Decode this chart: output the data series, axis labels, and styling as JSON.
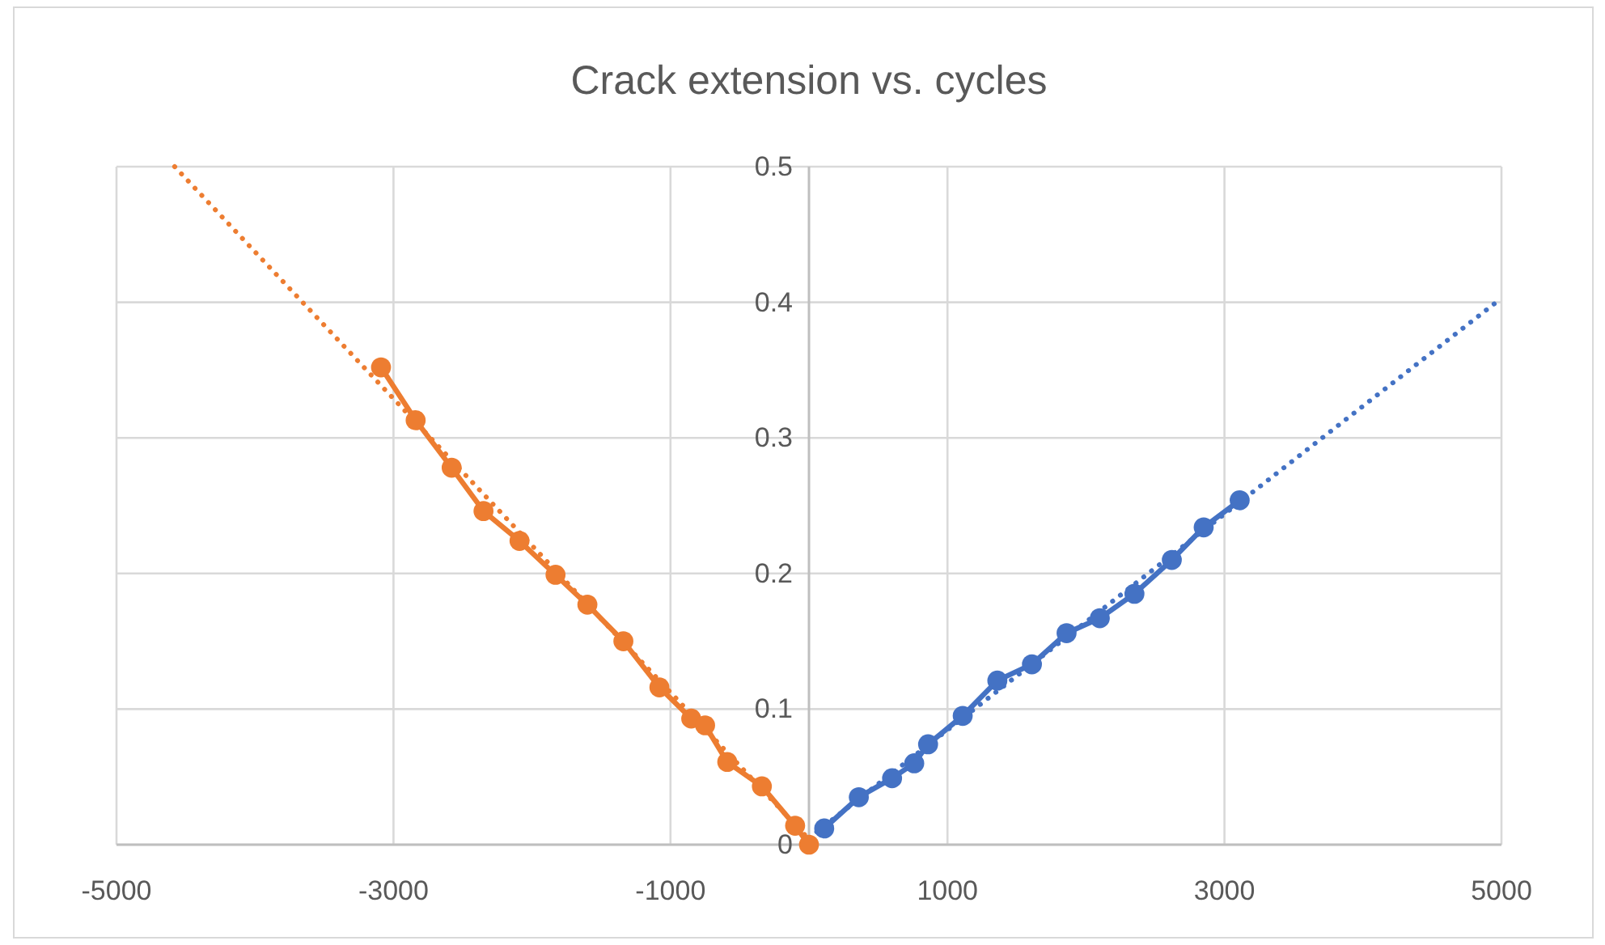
{
  "chart_data": {
    "type": "line",
    "title": "Crack extension vs. cycles",
    "xlim": [
      -5000,
      5000
    ],
    "xticks": [
      -5000,
      -3000,
      -1000,
      1000,
      3000,
      5000
    ],
    "ylim": [
      0,
      0.5
    ],
    "yticks": [
      0,
      0.1,
      0.2,
      0.3,
      0.4,
      0.5
    ],
    "grid": true,
    "marker": "circle",
    "line_style": "solid",
    "series": [
      {
        "color": "#4472c4",
        "x": [
          0,
          5000
        ],
        "values": [
          0.005,
          0.403
        ],
        "marker": "none",
        "line_style": "dotted"
      },
      {
        "color": "#4472c4",
        "x": [
          110,
          360,
          600,
          760,
          860,
          1110,
          1360,
          1610,
          1860,
          2100,
          2350,
          2620,
          2850,
          3110
        ],
        "values": [
          0.012,
          0.035,
          0.049,
          0.06,
          0.074,
          0.095,
          0.121,
          0.133,
          0.156,
          0.167,
          0.185,
          0.21,
          0.234,
          0.254
        ]
      },
      {
        "color": "#ed7d31",
        "x": [
          -4580,
          0
        ],
        "values": [
          0.5,
          0.004
        ],
        "marker": "none",
        "line_style": "dotted"
      },
      {
        "color": "#ed7d31",
        "x": [
          -3090,
          -2840,
          -2580,
          -2350,
          -2090,
          -1830,
          -1600,
          -1340,
          -1080,
          -850,
          -750,
          -590,
          -340,
          -100,
          0
        ],
        "values": [
          0.352,
          0.313,
          0.278,
          0.246,
          0.224,
          0.199,
          0.177,
          0.15,
          0.116,
          0.093,
          0.088,
          0.061,
          0.043,
          0.014,
          0
        ]
      }
    ]
  }
}
